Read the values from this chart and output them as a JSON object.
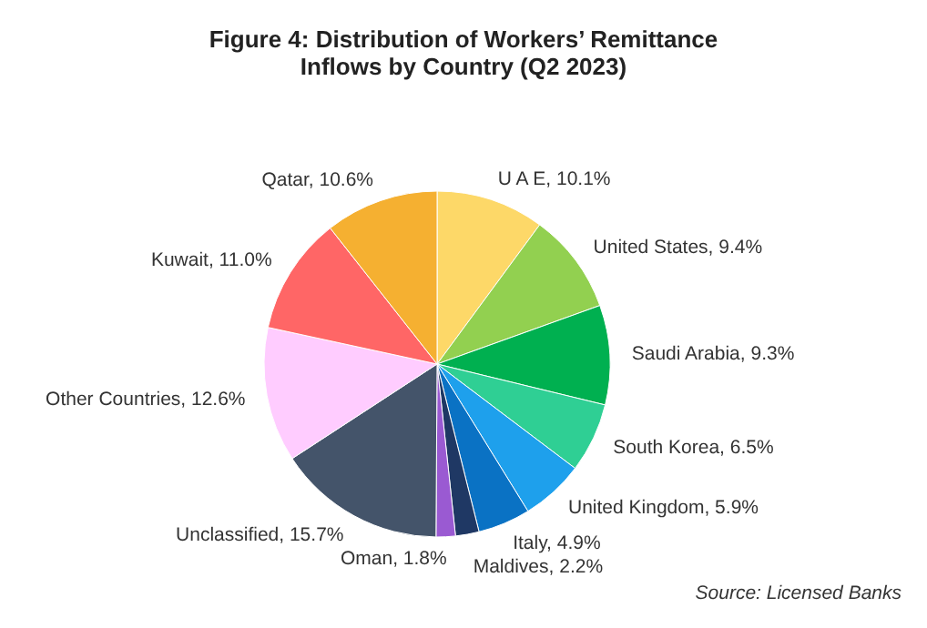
{
  "chart_data": {
    "type": "pie",
    "title": "Figure 4: Distribution of Workers’ Remittance\nInflows  by Country  (Q2 2023)",
    "categories": [
      "U A E",
      "United States",
      "Saudi Arabia",
      "South Korea",
      "United Kingdom",
      "Italy",
      "Maldives",
      "Oman",
      "Unclassified",
      "Other Countries",
      "Kuwait",
      "Qatar"
    ],
    "values": [
      10.1,
      9.4,
      9.3,
      6.5,
      5.9,
      4.9,
      2.2,
      1.8,
      15.7,
      12.6,
      11.0,
      10.6
    ],
    "value_labels": [
      "10.1%",
      "9.4%",
      "9.3%",
      "6.5%",
      "5.9%",
      "4.9%",
      "2.2%",
      "1.8%",
      "15.7%",
      "12.6%",
      "11.0%",
      "10.6%"
    ],
    "colors": [
      "#fdd868",
      "#92d050",
      "#00b050",
      "#2fcf94",
      "#1ea0ec",
      "#0a72c4",
      "#1f3864",
      "#9a5ad2",
      "#44546a",
      "#ffccff",
      "#ff6666",
      "#f5b031"
    ],
    "annotations": [
      "Source: Licensed Banks"
    ],
    "legend": false
  }
}
